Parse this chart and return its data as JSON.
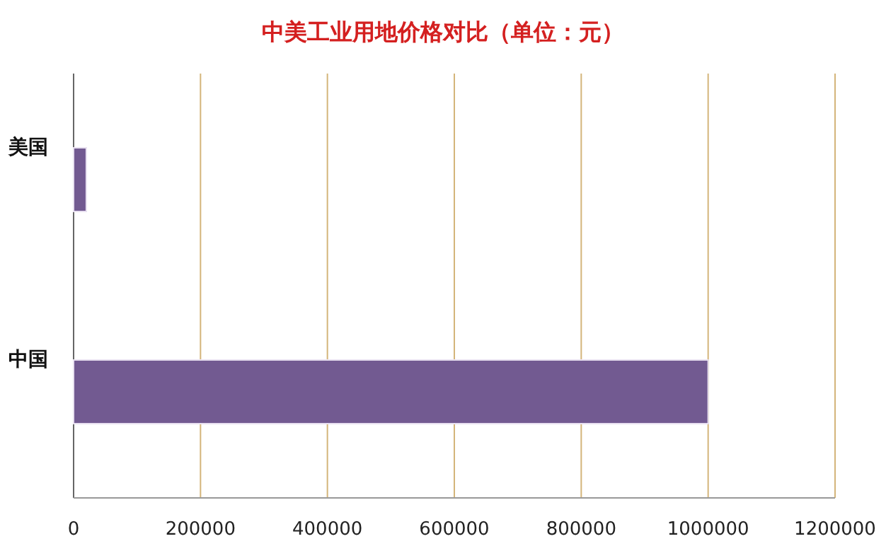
{
  "chart_data": {
    "type": "bar",
    "orientation": "horizontal",
    "title": "中美工业用地价格对比（单位：元）",
    "categories": [
      "美国",
      "中国"
    ],
    "values": [
      20000,
      1000000
    ],
    "color": "#725a91",
    "xlim": [
      0,
      1200000
    ],
    "xticks": [
      0,
      200000,
      400000,
      600000,
      800000,
      1000000,
      1200000
    ],
    "grid": "x"
  }
}
